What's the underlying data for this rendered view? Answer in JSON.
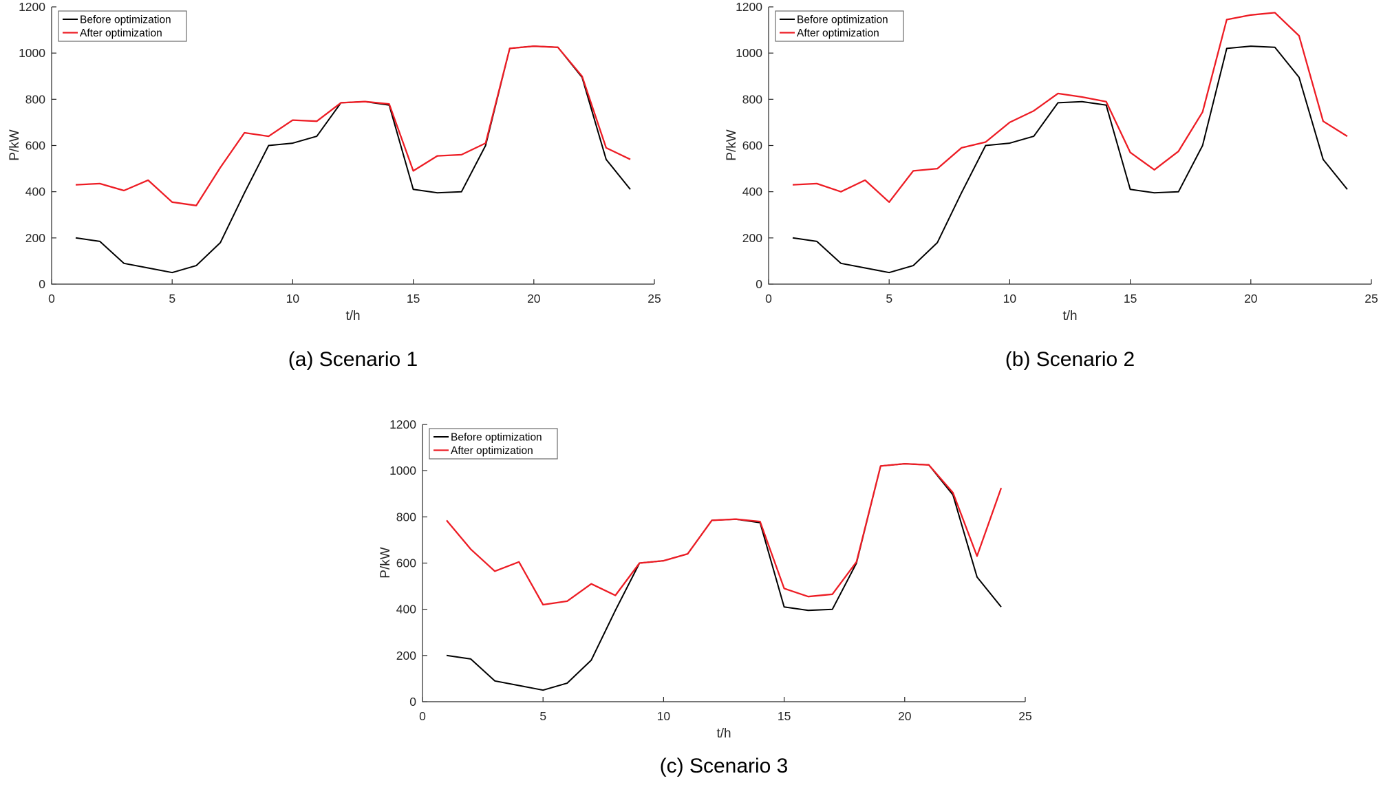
{
  "page": {
    "background": "#ffffff"
  },
  "colors": {
    "before": "#000000",
    "after": "#ed1c24",
    "axis": "#262626"
  },
  "legend": {
    "position": "top-left",
    "items": [
      {
        "label": "Before optimization",
        "color": "#000000"
      },
      {
        "label": "After optimization",
        "color": "#ed1c24"
      }
    ]
  },
  "chart_data": [
    {
      "type": "line",
      "caption": "(a) Scenario 1",
      "xlabel": "t/h",
      "ylabel": "P/kW",
      "xlim": [
        0,
        25
      ],
      "ylim": [
        0,
        1200
      ],
      "xticks": [
        0,
        5,
        10,
        15,
        20,
        25
      ],
      "yticks": [
        0,
        200,
        400,
        600,
        800,
        1000,
        1200
      ],
      "grid": false,
      "legend_position": "top-left",
      "x": [
        1,
        2,
        3,
        4,
        5,
        6,
        7,
        8,
        9,
        10,
        11,
        12,
        13,
        14,
        15,
        16,
        17,
        18,
        19,
        20,
        21,
        22,
        23,
        24
      ],
      "series": [
        {
          "name": "Before optimization",
          "color": "#000000",
          "values": [
            200,
            185,
            90,
            70,
            50,
            80,
            180,
            395,
            600,
            610,
            640,
            785,
            790,
            775,
            410,
            395,
            400,
            600,
            1020,
            1030,
            1025,
            895,
            540,
            410
          ]
        },
        {
          "name": "After optimization",
          "color": "#ed1c24",
          "values": [
            430,
            435,
            405,
            450,
            355,
            340,
            505,
            655,
            640,
            710,
            705,
            785,
            790,
            780,
            490,
            555,
            560,
            610,
            1020,
            1030,
            1025,
            900,
            590,
            540
          ]
        }
      ]
    },
    {
      "type": "line",
      "caption": "(b) Scenario 2",
      "xlabel": "t/h",
      "ylabel": "P/kW",
      "xlim": [
        0,
        25
      ],
      "ylim": [
        0,
        1200
      ],
      "xticks": [
        0,
        5,
        10,
        15,
        20,
        25
      ],
      "yticks": [
        0,
        200,
        400,
        600,
        800,
        1000,
        1200
      ],
      "grid": false,
      "legend_position": "top-left",
      "x": [
        1,
        2,
        3,
        4,
        5,
        6,
        7,
        8,
        9,
        10,
        11,
        12,
        13,
        14,
        15,
        16,
        17,
        18,
        19,
        20,
        21,
        22,
        23,
        24
      ],
      "series": [
        {
          "name": "Before optimization",
          "color": "#000000",
          "values": [
            200,
            185,
            90,
            70,
            50,
            80,
            180,
            395,
            600,
            610,
            640,
            785,
            790,
            775,
            410,
            395,
            400,
            600,
            1020,
            1030,
            1025,
            895,
            540,
            410
          ]
        },
        {
          "name": "After optimization",
          "color": "#ed1c24",
          "values": [
            430,
            435,
            400,
            450,
            355,
            490,
            500,
            590,
            615,
            700,
            750,
            825,
            810,
            790,
            570,
            495,
            575,
            745,
            1145,
            1165,
            1175,
            1075,
            705,
            640
          ]
        }
      ]
    },
    {
      "type": "line",
      "caption": "(c) Scenario 3",
      "xlabel": "t/h",
      "ylabel": "P/kW",
      "xlim": [
        0,
        25
      ],
      "ylim": [
        0,
        1200
      ],
      "xticks": [
        0,
        5,
        10,
        15,
        20,
        25
      ],
      "yticks": [
        0,
        200,
        400,
        600,
        800,
        1000,
        1200
      ],
      "grid": false,
      "legend_position": "top-left",
      "x": [
        1,
        2,
        3,
        4,
        5,
        6,
        7,
        8,
        9,
        10,
        11,
        12,
        13,
        14,
        15,
        16,
        17,
        18,
        19,
        20,
        21,
        22,
        23,
        24
      ],
      "series": [
        {
          "name": "Before optimization",
          "color": "#000000",
          "values": [
            200,
            185,
            90,
            70,
            50,
            80,
            180,
            395,
            600,
            610,
            640,
            785,
            790,
            775,
            410,
            395,
            400,
            600,
            1020,
            1030,
            1025,
            895,
            540,
            410
          ]
        },
        {
          "name": "After optimization",
          "color": "#ed1c24",
          "values": [
            785,
            660,
            565,
            605,
            420,
            435,
            510,
            460,
            600,
            610,
            640,
            785,
            790,
            780,
            490,
            455,
            465,
            605,
            1020,
            1030,
            1025,
            905,
            630,
            925
          ]
        }
      ]
    }
  ]
}
